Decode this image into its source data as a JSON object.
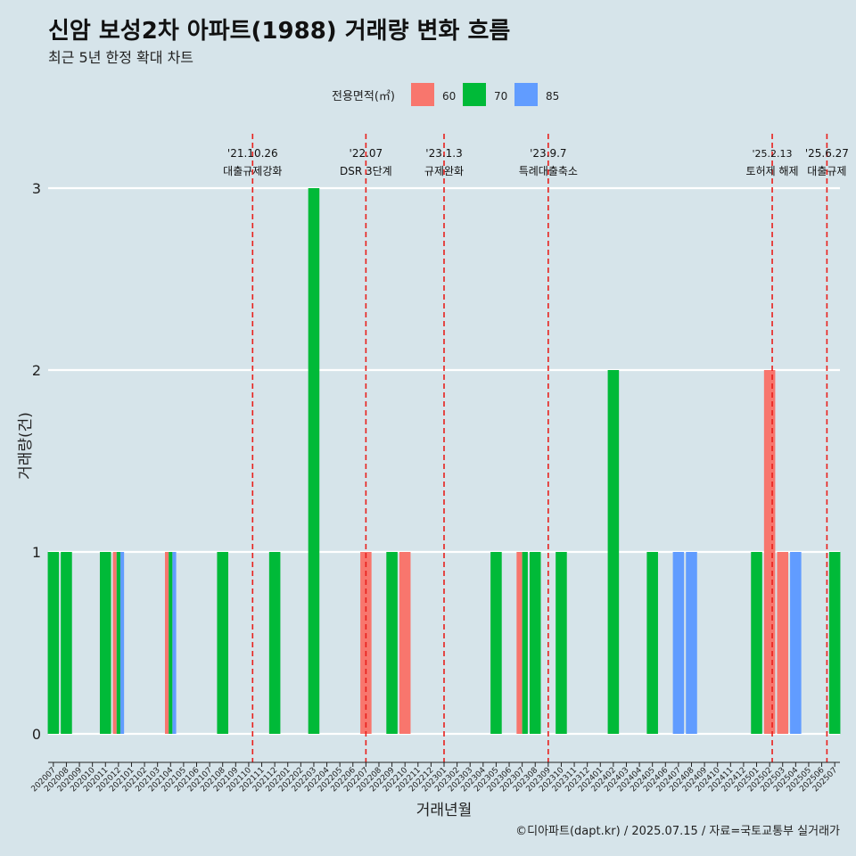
{
  "chart_data": {
    "type": "bar",
    "stacked": true,
    "title": "신암 보성2차 아파트(1988) 거래량 변화 흐름",
    "subtitle": "최근 5년 한정 확대 차트",
    "xlabel": "거래년월",
    "ylabel": "거래량(건)",
    "ylim": [
      0,
      3
    ],
    "yticks": [
      0,
      1,
      2,
      3
    ],
    "grid": "horizontal",
    "legend": {
      "title": "전용면적(㎡)",
      "placement": "top",
      "entries": [
        {
          "name": "60",
          "color": "#f8766d"
        },
        {
          "name": "70",
          "color": "#00ba38"
        },
        {
          "name": "85",
          "color": "#619cff"
        }
      ]
    },
    "categories": [
      "202007",
      "202008",
      "202009",
      "202010",
      "202011",
      "202012",
      "202101",
      "202102",
      "202103",
      "202104",
      "202105",
      "202106",
      "202107",
      "202108",
      "202109",
      "202110",
      "202111",
      "202112",
      "202201",
      "202202",
      "202203",
      "202204",
      "202205",
      "202206",
      "202207",
      "202208",
      "202209",
      "202210",
      "202211",
      "202212",
      "202301",
      "202302",
      "202303",
      "202304",
      "202305",
      "202306",
      "202307",
      "202308",
      "202309",
      "202310",
      "202311",
      "202312",
      "202401",
      "202402",
      "202403",
      "202404",
      "202405",
      "202406",
      "202407",
      "202408",
      "202409",
      "202410",
      "202411",
      "202412",
      "202501",
      "202502",
      "202503",
      "202504",
      "202505",
      "202506",
      "202507"
    ],
    "bars": [
      {
        "month": "202007",
        "segments": [
          {
            "area": "70",
            "value": 1
          }
        ]
      },
      {
        "month": "202008",
        "segments": [
          {
            "area": "70",
            "value": 1
          }
        ]
      },
      {
        "month": "202011",
        "segments": [
          {
            "area": "70",
            "value": 1
          }
        ]
      },
      {
        "month": "202012",
        "segments": [
          {
            "area": "60",
            "value": 0.34
          },
          {
            "area": "70",
            "value": 0.33
          },
          {
            "area": "85",
            "value": 0.33
          }
        ]
      },
      {
        "month": "202104",
        "segments": [
          {
            "area": "60",
            "value": 0.34
          },
          {
            "area": "70",
            "value": 0.33
          },
          {
            "area": "85",
            "value": 0.33
          }
        ]
      },
      {
        "month": "202108",
        "segments": [
          {
            "area": "70",
            "value": 1
          }
        ]
      },
      {
        "month": "202112",
        "segments": [
          {
            "area": "70",
            "value": 1
          }
        ]
      },
      {
        "month": "202203",
        "segments": [
          {
            "area": "70",
            "value": 3
          }
        ]
      },
      {
        "month": "202207",
        "segments": [
          {
            "area": "60",
            "value": 1
          }
        ]
      },
      {
        "month": "202209",
        "segments": [
          {
            "area": "70",
            "value": 1
          }
        ]
      },
      {
        "month": "202210",
        "segments": [
          {
            "area": "60",
            "value": 1
          }
        ]
      },
      {
        "month": "202305",
        "segments": [
          {
            "area": "70",
            "value": 1
          }
        ]
      },
      {
        "month": "202307",
        "segments": [
          {
            "area": "60",
            "value": 0.5
          },
          {
            "area": "70",
            "value": 0.5
          }
        ]
      },
      {
        "month": "202308",
        "segments": [
          {
            "area": "70",
            "value": 1
          }
        ]
      },
      {
        "month": "202310",
        "segments": [
          {
            "area": "70",
            "value": 1
          }
        ]
      },
      {
        "month": "202402",
        "segments": [
          {
            "area": "70",
            "value": 2
          }
        ]
      },
      {
        "month": "202405",
        "segments": [
          {
            "area": "70",
            "value": 1
          }
        ]
      },
      {
        "month": "202407",
        "segments": [
          {
            "area": "85",
            "value": 1
          }
        ]
      },
      {
        "month": "202408",
        "segments": [
          {
            "area": "85",
            "value": 1
          }
        ]
      },
      {
        "month": "202501",
        "segments": [
          {
            "area": "70",
            "value": 1
          }
        ]
      },
      {
        "month": "202502",
        "segments": [
          {
            "area": "60",
            "value": 2
          }
        ]
      },
      {
        "month": "202503",
        "segments": [
          {
            "area": "60",
            "value": 1
          }
        ]
      },
      {
        "month": "202504",
        "segments": [
          {
            "area": "85",
            "value": 1
          }
        ]
      },
      {
        "month": "202507",
        "segments": [
          {
            "area": "70",
            "value": 1
          }
        ]
      }
    ],
    "annotations": [
      {
        "date": "'21.10.26",
        "label": "대출규제강화",
        "month": "202110",
        "offset": 0.3
      },
      {
        "date": "'22.07",
        "label": "DSR 3단계",
        "month": "202207",
        "offset": 0
      },
      {
        "date": "'23.1.3",
        "label": "규제완화",
        "month": "202301",
        "offset": 0
      },
      {
        "date": "'23.9.7",
        "label": "특례대출축소",
        "month": "202309",
        "offset": 0
      },
      {
        "date": "'25.2.13",
        "label": "토허제 해제",
        "month": "202502",
        "offset": 0.2
      },
      {
        "date": "'25.6.27",
        "label": "대출규제",
        "month": "202506",
        "offset": 0.4
      }
    ]
  },
  "caption": "©디아파트(dapt.kr) / 2025.07.15 / 자료=국토교통부 실거래가"
}
